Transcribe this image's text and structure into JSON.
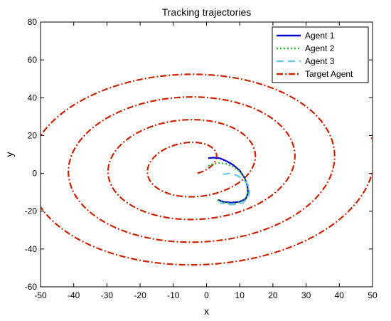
{
  "chart_data": {
    "type": "line",
    "title": "Tracking trajectories",
    "xlabel": "x",
    "ylabel": "y",
    "xlim": [
      -50,
      50
    ],
    "ylim": [
      -60,
      80
    ],
    "xticks": [
      -50,
      -40,
      -30,
      -20,
      -10,
      0,
      10,
      20,
      30,
      40,
      50
    ],
    "yticks": [
      -60,
      -40,
      -20,
      0,
      20,
      40,
      60,
      80
    ],
    "grid": false,
    "legend_position": "top-right",
    "series": [
      {
        "name": "Agent 1",
        "color": "#0000cc",
        "style": "solid",
        "x": [
          0.5,
          2,
          4,
          6,
          8,
          10,
          11.5,
          12.3,
          12.5,
          11.8,
          10,
          7.5,
          5,
          3.5
        ],
        "y": [
          8,
          8.3,
          8,
          6.5,
          4.5,
          1.5,
          -2.5,
          -6.5,
          -10.5,
          -13.5,
          -15,
          -15.5,
          -15,
          -14
        ]
      },
      {
        "name": "Agent 2",
        "color": "#22bb22",
        "style": "dotted",
        "x": [
          0.5,
          2,
          4,
          6,
          8,
          10,
          11.5,
          12.5,
          12.3,
          11,
          8.5,
          5.5,
          3
        ],
        "y": [
          4,
          5,
          5.5,
          5,
          3.5,
          1,
          -2.5,
          -7,
          -11.5,
          -14.5,
          -16,
          -15.5,
          -14
        ]
      },
      {
        "name": "Agent 3",
        "color": "#66c8ee",
        "style": "dashed",
        "x": [
          5,
          7,
          9,
          11,
          12.5,
          13,
          12.5,
          11,
          9,
          6.5,
          4
        ],
        "y": [
          -0.5,
          0,
          -1,
          -3,
          -6,
          -9.5,
          -13,
          -15.5,
          -16.5,
          -16.5,
          -15.5
        ]
      },
      {
        "name": "Target Agent",
        "color": "#cc2200",
        "style": "dashdot",
        "spiral": {
          "center": [
            -4.5,
            5
          ],
          "a0": 4.5,
          "b0": 7.0,
          "growth_per_turn": 12.0,
          "tilt_deg": -28,
          "turns": 4.2,
          "start_angle_deg": 330
        }
      }
    ]
  }
}
